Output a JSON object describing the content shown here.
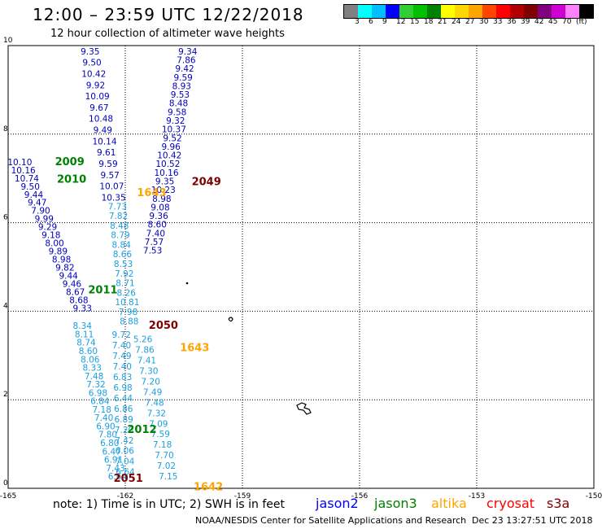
{
  "header": {
    "title": "12:00 – 23:59 UTC 12/22/2018",
    "subtitle": "12 hour collection of altimeter wave heights"
  },
  "colorbar": {
    "colors": [
      "#808080",
      "#00ffff",
      "#00bfff",
      "#0000ff",
      "#32cd32",
      "#00c000",
      "#008000",
      "#ffff00",
      "#ffd700",
      "#ffa500",
      "#ff4500",
      "#ff0000",
      "#b00000",
      "#800000",
      "#800080",
      "#d000d0",
      "#ff80ff",
      "#000000"
    ],
    "labels": [
      "3",
      "6",
      "9",
      "12",
      "15",
      "18",
      "21",
      "24",
      "27",
      "30",
      "33",
      "36",
      "39",
      "42",
      "45",
      "70",
      "(ft)"
    ]
  },
  "axes": {
    "x_ticks": [
      "-165",
      "-162",
      "-159",
      "-156",
      "-153",
      "-150"
    ],
    "y_ticks": [
      "0",
      "2",
      "4",
      "6",
      "8",
      "10"
    ]
  },
  "legend": {
    "note": "note:  1) Time is in UTC;  2) SWH is in feet",
    "satellites": [
      {
        "name": "jason2",
        "color": "#0000ff"
      },
      {
        "name": "jason3",
        "color": "#008000"
      },
      {
        "name": "altika",
        "color": "#ffa500"
      },
      {
        "name": "cryosat",
        "color": "#ff0000"
      },
      {
        "name": "s3a",
        "color": "#800000"
      }
    ]
  },
  "footer": {
    "credit": "NOAA/NESDIS Center for Satellite Applications and Research",
    "timestamp": "Dec 23 13:27:51 UTC 2018"
  },
  "chart_data": {
    "type": "scatter",
    "x_unit": "degrees longitude",
    "y_unit": "degrees latitude",
    "xlim": [
      -165,
      -150
    ],
    "ylim": [
      0,
      10
    ],
    "grid": true,
    "pass_labels": [
      {
        "text": "2009",
        "lon": -163.8,
        "lat": 7.3,
        "color": "#008000"
      },
      {
        "text": "2010",
        "lon": -163.75,
        "lat": 6.9,
        "color": "#008000"
      },
      {
        "text": "2011",
        "lon": -162.95,
        "lat": 4.4,
        "color": "#008000"
      },
      {
        "text": "2012",
        "lon": -161.95,
        "lat": 1.25,
        "color": "#008000"
      },
      {
        "text": "2049",
        "lon": -160.3,
        "lat": 6.85,
        "color": "#800000"
      },
      {
        "text": "2050",
        "lon": -161.4,
        "lat": 3.6,
        "color": "#800000"
      },
      {
        "text": "2051",
        "lon": -162.3,
        "lat": 0.15,
        "color": "#800000"
      },
      {
        "text": "1643",
        "lon": -160.6,
        "lat": 3.1,
        "color": "#ffa500"
      },
      {
        "text": "1642",
        "lon": -160.25,
        "lat": -0.05,
        "color": "#ffa500"
      },
      {
        "text": "1643",
        "lon": -161.7,
        "lat": 6.6,
        "color": "#ffa500"
      }
    ],
    "tracks": [
      {
        "satellite": "jason2",
        "color": "#0000bb",
        "lon_start": -162.9,
        "lat_start": 9.8,
        "lon_end": -162.3,
        "lat_end": 6.5,
        "values": [
          "9.35",
          "9.50",
          "10.42",
          "9.92",
          "10.09",
          "9.67",
          "10.48",
          "9.49",
          "10.14",
          "9.61",
          "9.59",
          "9.57",
          "10.07",
          "10.35"
        ]
      },
      {
        "satellite": "jason2",
        "color": "#0000bb",
        "lon_start": -164.7,
        "lat_start": 7.3,
        "lon_end": -163.1,
        "lat_end": 4.0,
        "values": [
          "10.10",
          "10.16",
          "10.74",
          "9.50",
          "9.44",
          "9.47",
          "7.90",
          "9.99",
          "9.29",
          "9.18",
          "8.00",
          "9.89",
          "8.98",
          "9.82",
          "9.44",
          "9.46",
          "8.67",
          "8.68",
          "9.33"
        ]
      },
      {
        "satellite": "jason2",
        "color": "#0000bb",
        "lon_start": -160.4,
        "lat_start": 9.8,
        "lon_end": -161.3,
        "lat_end": 5.3,
        "values": [
          "9.34",
          "7.86",
          "9.42",
          "9.59",
          "8.93",
          "9.53",
          "8.48",
          "9.58",
          "9.32",
          "10.37",
          "9.52",
          "9.96",
          "10.42",
          "10.52",
          "10.16",
          "9.35",
          "10.23",
          "8.98",
          "9.08",
          "9.36",
          "8.60",
          "7.40",
          "7.57",
          "7.53"
        ]
      },
      {
        "satellite": "jason3",
        "color": "#1a9fdf",
        "lon_start": -162.2,
        "lat_start": 6.3,
        "lon_end": -161.9,
        "lat_end": 3.7,
        "values": [
          "7.73",
          "7.82",
          "8.48",
          "8.79",
          "8.84",
          "8.66",
          "8.53",
          "7.92",
          "8.71",
          "8.26",
          "10.81",
          "7.98",
          "8.88"
        ]
      },
      {
        "satellite": "jason3",
        "color": "#1a9fdf",
        "lon_start": -163.1,
        "lat_start": 3.6,
        "lon_end": -162.2,
        "lat_end": 0.2,
        "values": [
          "8.34",
          "8.11",
          "8.74",
          "8.60",
          "8.06",
          "8.33",
          "7.48",
          "7.32",
          "6.98",
          "6.84",
          "7.18",
          "7.40",
          "6.90",
          "7.80",
          "6.80",
          "6.47",
          "6.91",
          "7.43",
          "6.64"
        ]
      },
      {
        "satellite": "jason3",
        "color": "#1a9fdf",
        "lon_start": -162.1,
        "lat_start": 3.4,
        "lon_end": -162.0,
        "lat_end": 0.3,
        "values": [
          "9.72",
          "7.40",
          "7.49",
          "7.40",
          "6.83",
          "6.98",
          "6.44",
          "6.86",
          "6.89",
          "7.20",
          "7.42",
          "6.06",
          "7.04",
          "6.64"
        ]
      },
      {
        "satellite": "jason3",
        "color": "#1a9fdf",
        "lon_start": -161.55,
        "lat_start": 3.3,
        "lon_end": -160.9,
        "lat_end": 0.2,
        "values": [
          "5.26",
          "7.86",
          "7.41",
          "7.30",
          "7.20",
          "7.49",
          "7.48",
          "7.32",
          "7.09",
          "7.59",
          "7.18",
          "7.70",
          "7.02",
          "7.15"
        ]
      }
    ]
  }
}
